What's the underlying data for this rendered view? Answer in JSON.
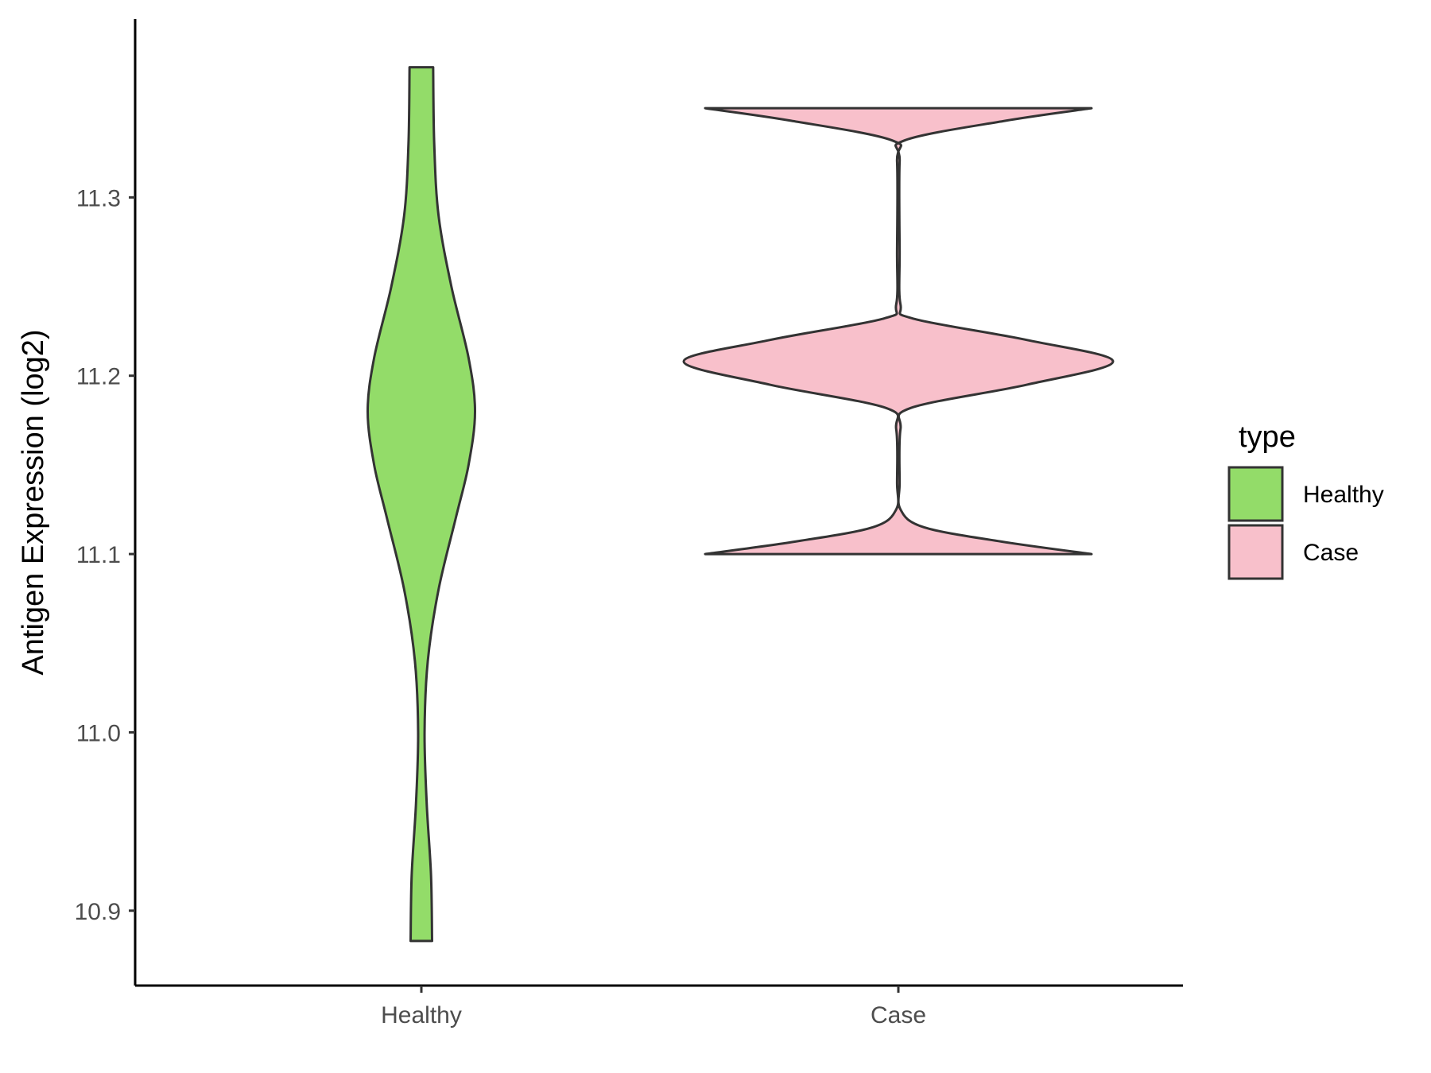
{
  "chart_data": {
    "type": "violin",
    "title": "",
    "xlabel": "",
    "ylabel": "Antigen Expression (log2)",
    "categories": [
      "Healthy",
      "Case"
    ],
    "ylim": [
      10.858,
      11.4
    ],
    "yticks": [
      10.9,
      11.0,
      11.1,
      11.2,
      11.3
    ],
    "ytick_labels": [
      "10.9",
      "11.0",
      "11.1",
      "11.2",
      "11.3"
    ],
    "grid": false,
    "legend": {
      "title": "type",
      "position": "right",
      "entries": [
        {
          "label": "Healthy",
          "color": "#93dc69"
        },
        {
          "label": "Case",
          "color": "#f8c0cb"
        }
      ]
    },
    "series": [
      {
        "category": "Healthy",
        "color": "#93dc69",
        "min": 10.883,
        "max": 11.373,
        "density_profile": [
          [
            10.883,
            0.05
          ],
          [
            10.92,
            0.045
          ],
          [
            10.96,
            0.025
          ],
          [
            11.0,
            0.015
          ],
          [
            11.04,
            0.03
          ],
          [
            11.08,
            0.08
          ],
          [
            11.12,
            0.16
          ],
          [
            11.15,
            0.22
          ],
          [
            11.18,
            0.25
          ],
          [
            11.21,
            0.22
          ],
          [
            11.25,
            0.14
          ],
          [
            11.29,
            0.08
          ],
          [
            11.33,
            0.06
          ],
          [
            11.373,
            0.055
          ]
        ]
      },
      {
        "category": "Case",
        "color": "#f8c0cb",
        "min": 11.1,
        "max": 11.35,
        "density_profile": [
          [
            11.1,
            0.9
          ],
          [
            11.107,
            0.48
          ],
          [
            11.115,
            0.12
          ],
          [
            11.125,
            0.01
          ],
          [
            11.14,
            0.006
          ],
          [
            11.17,
            0.01
          ],
          [
            11.182,
            0.06
          ],
          [
            11.195,
            0.6
          ],
          [
            11.208,
            1.0
          ],
          [
            11.22,
            0.6
          ],
          [
            11.232,
            0.07
          ],
          [
            11.24,
            0.01
          ],
          [
            11.27,
            0.006
          ],
          [
            11.32,
            0.006
          ],
          [
            11.332,
            0.03
          ],
          [
            11.343,
            0.5
          ],
          [
            11.35,
            0.9
          ]
        ]
      }
    ]
  }
}
